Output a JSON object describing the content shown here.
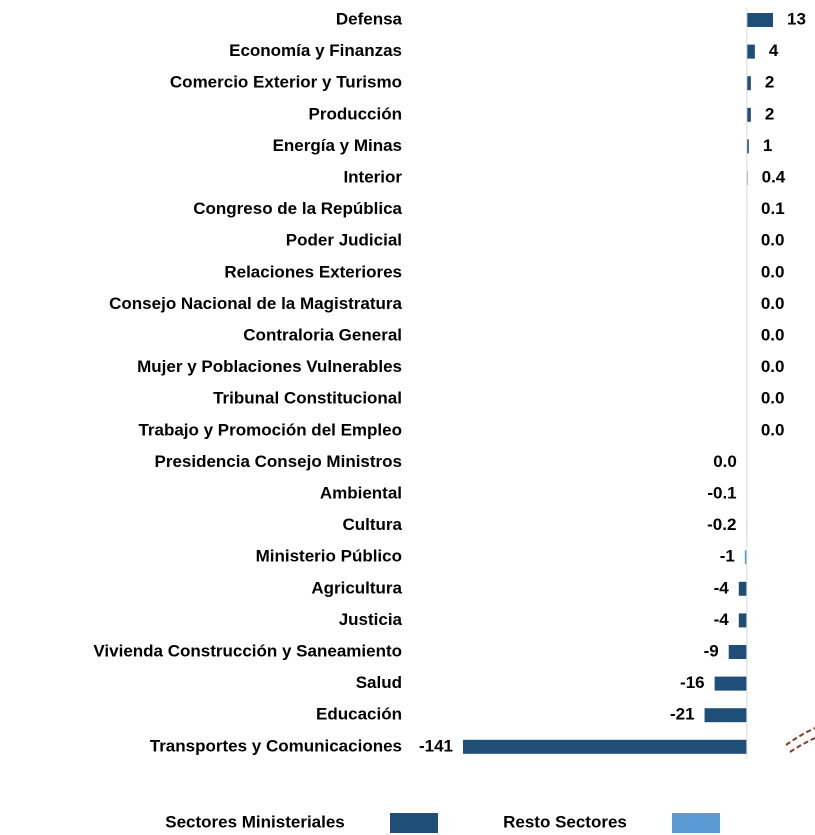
{
  "chart_data": {
    "type": "bar",
    "orientation": "horizontal",
    "categories": [
      "Defensa",
      "Economía y Finanzas",
      "Comercio Exterior y Turismo",
      "Producción",
      "Energía y Minas",
      "Interior",
      "Congreso de la República",
      "Poder Judicial",
      "Relaciones Exteriores",
      "Consejo Nacional de la Magistratura",
      "Contraloria General",
      "Mujer y Poblaciones Vulnerables",
      "Tribunal Constitucional",
      "Trabajo y Promoción del Empleo",
      "Presidencia Consejo Ministros",
      "Ambiental",
      "Cultura",
      "Ministerio Público",
      "Agricultura",
      "Justicia",
      "Vivienda Construcción y Saneamiento",
      "Salud",
      "Educación",
      "Transportes y Comunicaciones"
    ],
    "series": [
      {
        "name": "Sectores Ministeriales",
        "color": "#1f4e79",
        "values": [
          13,
          4,
          2,
          2,
          1,
          0.4,
          0.1,
          0.0,
          0.0,
          0.0,
          0.0,
          0.0,
          0.0,
          0.0,
          -0.0,
          -0.1,
          -0.2,
          null,
          -4,
          -4,
          -9,
          -16,
          -21,
          -141
        ],
        "value_labels": [
          null,
          null,
          null,
          null,
          null,
          null,
          null,
          "0.0",
          "0.0",
          "0.0",
          "0.0",
          "0.0",
          "0.0",
          "0.0",
          "0.0",
          null,
          null,
          null,
          null,
          null,
          null,
          null,
          null,
          null
        ]
      },
      {
        "name": "Resto Sectores",
        "color": "#5b9bd5",
        "values": [
          null,
          null,
          null,
          null,
          null,
          null,
          null,
          null,
          null,
          null,
          null,
          null,
          null,
          null,
          null,
          null,
          null,
          -1,
          null,
          null,
          null,
          null,
          null,
          null
        ]
      }
    ],
    "xlim": [
      -141,
      13
    ]
  }
}
